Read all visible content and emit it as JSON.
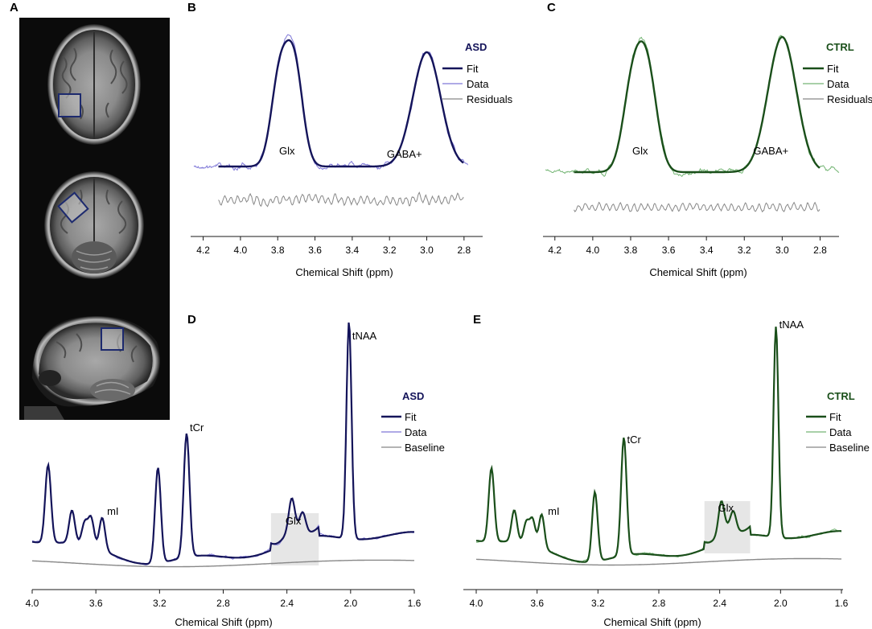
{
  "figure": {
    "panel_labels": {
      "A": "A",
      "B": "B",
      "C": "C",
      "D": "D",
      "E": "E"
    },
    "colors": {
      "asd": "#14145a",
      "asd_data": "#7f78d8",
      "ctrl": "#1a4f1a",
      "ctrl_data": "#74b574",
      "residual": "#888888",
      "baseline": "#888888",
      "highlight": "#e6e6e6",
      "mri_bg": "#0b0b0b",
      "mri_box": "#1d2a6e"
    }
  },
  "chart_data": [
    {
      "id": "B",
      "type": "line",
      "title": "ASD",
      "xlabel": "Chemical Shift (ppm)",
      "x_range": [
        4.25,
        2.7
      ],
      "ticks": [
        "4.2",
        "4.0",
        "3.8",
        "3.6",
        "3.4",
        "3.2",
        "3.0",
        "2.8"
      ],
      "tick_values": [
        4.2,
        4.0,
        3.8,
        3.6,
        3.4,
        3.2,
        3.0,
        2.8
      ],
      "legend": [
        "Fit",
        "Data",
        "Residuals"
      ],
      "annotations": [
        {
          "text": "Glx",
          "ppm": 3.75
        },
        {
          "text": "GABA+",
          "ppm": 3.12
        }
      ],
      "peaks": [
        {
          "ppm": 3.79,
          "height": 0.76
        },
        {
          "ppm": 3.71,
          "height": 0.84
        },
        {
          "ppm": 3.0,
          "height": 0.98
        }
      ]
    },
    {
      "id": "C",
      "type": "line",
      "title": "CTRL",
      "xlabel": "Chemical Shift (ppm)",
      "x_range": [
        4.25,
        2.7
      ],
      "ticks": [
        "4.2",
        "4.0",
        "3.8",
        "3.6",
        "3.4",
        "3.2",
        "3.0",
        "2.8"
      ],
      "tick_values": [
        4.2,
        4.0,
        3.8,
        3.6,
        3.4,
        3.2,
        3.0,
        2.8
      ],
      "legend": [
        "Fit",
        "Data",
        "Residuals"
      ],
      "annotations": [
        {
          "text": "Glx",
          "ppm": 3.75
        },
        {
          "text": "GABA+",
          "ppm": 3.06
        }
      ],
      "peaks": [
        {
          "ppm": 3.79,
          "height": 0.63
        },
        {
          "ppm": 3.71,
          "height": 0.7
        },
        {
          "ppm": 3.0,
          "height": 1.0
        }
      ]
    },
    {
      "id": "D",
      "type": "line",
      "title": "ASD",
      "xlabel": "Chemical Shift (ppm)",
      "x_range": [
        4.0,
        1.6
      ],
      "ticks": [
        "4.0",
        "3.6",
        "3.2",
        "2.8",
        "2.4",
        "2.0",
        "1.6"
      ],
      "tick_values": [
        4.0,
        3.6,
        3.2,
        2.8,
        2.4,
        2.0,
        1.6
      ],
      "legend": [
        "Fit",
        "Data",
        "Baseline"
      ],
      "annotations": [
        {
          "text": "tNAA",
          "ppm": 2.01
        },
        {
          "text": "tCr",
          "ppm": 3.03
        },
        {
          "text": "mI",
          "ppm": 3.55
        },
        {
          "text": "Glx",
          "ppm": 2.36
        }
      ],
      "highlight_range": [
        2.5,
        2.2
      ],
      "peaks": [
        {
          "ppm": 3.9,
          "height": 0.36
        },
        {
          "ppm": 3.75,
          "height": 0.15
        },
        {
          "ppm": 3.67,
          "height": 0.1
        },
        {
          "ppm": 3.63,
          "height": 0.13
        },
        {
          "ppm": 3.56,
          "height": 0.15
        },
        {
          "ppm": 3.21,
          "height": 0.44
        },
        {
          "ppm": 3.03,
          "height": 0.57
        },
        {
          "ppm": 2.37,
          "height": 0.14
        },
        {
          "ppm": 2.3,
          "height": 0.08
        },
        {
          "ppm": 2.01,
          "height": 1.0
        }
      ]
    },
    {
      "id": "E",
      "type": "line",
      "title": "CTRL",
      "xlabel": "Chemical Shift (ppm)",
      "x_range": [
        4.0,
        1.6
      ],
      "ticks": [
        "4.0",
        "3.6",
        "3.2",
        "2.8",
        "2.4",
        "2.0",
        "1.6"
      ],
      "tick_values": [
        4.0,
        3.6,
        3.2,
        2.8,
        2.4,
        2.0,
        1.6
      ],
      "legend": [
        "Fit",
        "Data",
        "Baseline"
      ],
      "annotations": [
        {
          "text": "tNAA",
          "ppm": 2.03
        },
        {
          "text": "tCr",
          "ppm": 3.03
        },
        {
          "text": "mI",
          "ppm": 3.55
        },
        {
          "text": "Glx",
          "ppm": 2.36
        }
      ],
      "highlight_range": [
        2.5,
        2.2
      ],
      "peaks": [
        {
          "ppm": 3.9,
          "height": 0.35
        },
        {
          "ppm": 3.75,
          "height": 0.15
        },
        {
          "ppm": 3.67,
          "height": 0.1
        },
        {
          "ppm": 3.63,
          "height": 0.12
        },
        {
          "ppm": 3.57,
          "height": 0.16
        },
        {
          "ppm": 3.22,
          "height": 0.33
        },
        {
          "ppm": 3.03,
          "height": 0.56
        },
        {
          "ppm": 2.39,
          "height": 0.14
        },
        {
          "ppm": 2.31,
          "height": 0.08
        },
        {
          "ppm": 2.03,
          "height": 1.0
        }
      ]
    }
  ]
}
